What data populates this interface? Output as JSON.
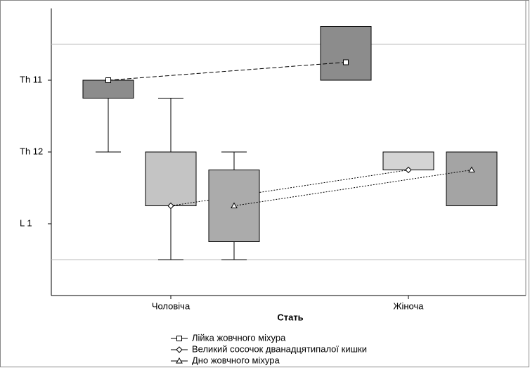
{
  "chart_data": {
    "type": "box",
    "xlabel": "Стать",
    "categories": [
      "Чоловіча",
      "Жіноча"
    ],
    "ylim": [
      14,
      10
    ],
    "yticks": [
      {
        "value": 11,
        "label": "Th 11"
      },
      {
        "value": 12,
        "label": "Th 12"
      },
      {
        "value": 13,
        "label": "L 1"
      }
    ],
    "gridlines": [
      10.5,
      13.5
    ],
    "series": [
      {
        "name": "Лійка жовчного міхура",
        "marker": "square",
        "colors": [
          "#8c8c8c",
          "#8c8c8c"
        ],
        "low": [
          11,
          10.25
        ],
        "q1": [
          11,
          10.25
        ],
        "mid": [
          11,
          10.75
        ],
        "q3": [
          11.25,
          11
        ],
        "high": [
          12,
          11
        ]
      },
      {
        "name": "Великий сосочок дванадцятипалої кишки",
        "marker": "diamond",
        "colors": [
          "#c4c4c4",
          "#d4d4d4"
        ],
        "low": [
          11.25,
          12
        ],
        "q1": [
          12,
          12
        ],
        "mid": [
          12.75,
          12.25
        ],
        "q3": [
          12.75,
          12.25
        ],
        "high": [
          13.5,
          12.25
        ]
      },
      {
        "name": "Дно жовчного міхура",
        "marker": "triangle",
        "colors": [
          "#ababab",
          "#a4a4a4"
        ],
        "low": [
          12,
          12
        ],
        "q1": [
          12.25,
          12
        ],
        "mid": [
          12.75,
          12.25
        ],
        "q3": [
          13.25,
          12.75
        ],
        "high": [
          13.5,
          12.75
        ]
      }
    ]
  }
}
